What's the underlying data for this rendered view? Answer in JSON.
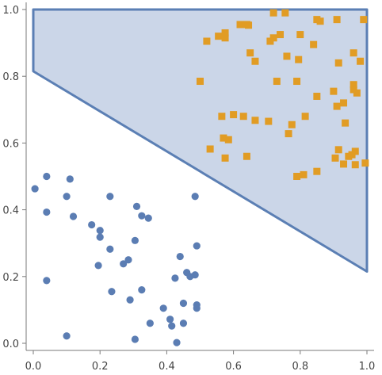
{
  "chart_data": {
    "type": "scatter",
    "title": "",
    "xlabel": "",
    "ylabel": "",
    "xlim": [
      0,
      1
    ],
    "ylim": [
      0,
      1
    ],
    "xticks": [
      "0.0",
      "0.2",
      "0.4",
      "0.6",
      "0.8",
      "1.0"
    ],
    "yticks": [
      "0.0",
      "0.2",
      "0.4",
      "0.6",
      "0.8",
      "1.0"
    ],
    "grid": false,
    "legend": "none",
    "region": {
      "fill": "#cbd6e8",
      "stroke": "#5b7fb4",
      "vertices": [
        [
          0.0,
          1.0
        ],
        [
          1.0,
          1.0
        ],
        [
          1.0,
          0.215
        ],
        [
          0.0,
          0.815
        ]
      ]
    },
    "series": [
      {
        "marker": "circle",
        "color": "#5b7db3",
        "points": [
          [
            0.005,
            0.463
          ],
          [
            0.04,
            0.5
          ],
          [
            0.04,
            0.393
          ],
          [
            0.04,
            0.188
          ],
          [
            0.1,
            0.44
          ],
          [
            0.11,
            0.492
          ],
          [
            0.12,
            0.38
          ],
          [
            0.1,
            0.022
          ],
          [
            0.175,
            0.355
          ],
          [
            0.2,
            0.338
          ],
          [
            0.2,
            0.318
          ],
          [
            0.195,
            0.233
          ],
          [
            0.23,
            0.282
          ],
          [
            0.23,
            0.44
          ],
          [
            0.235,
            0.155
          ],
          [
            0.27,
            0.238
          ],
          [
            0.285,
            0.25
          ],
          [
            0.29,
            0.13
          ],
          [
            0.31,
            0.41
          ],
          [
            0.305,
            0.308
          ],
          [
            0.305,
            0.012
          ],
          [
            0.325,
            0.382
          ],
          [
            0.325,
            0.16
          ],
          [
            0.345,
            0.375
          ],
          [
            0.35,
            0.06
          ],
          [
            0.39,
            0.105
          ],
          [
            0.41,
            0.072
          ],
          [
            0.415,
            0.052
          ],
          [
            0.425,
            0.195
          ],
          [
            0.43,
            0.002
          ],
          [
            0.44,
            0.26
          ],
          [
            0.45,
            0.06
          ],
          [
            0.45,
            0.12
          ],
          [
            0.46,
            0.212
          ],
          [
            0.47,
            0.2
          ],
          [
            0.485,
            0.44
          ],
          [
            0.485,
            0.205
          ],
          [
            0.49,
            0.292
          ],
          [
            0.49,
            0.115
          ],
          [
            0.49,
            0.105
          ]
        ]
      },
      {
        "marker": "square",
        "color": "#e19c24",
        "points": [
          [
            0.5,
            0.785
          ],
          [
            0.52,
            0.905
          ],
          [
            0.53,
            0.582
          ],
          [
            0.555,
            0.92
          ],
          [
            0.565,
            0.68
          ],
          [
            0.57,
            0.615
          ],
          [
            0.575,
            0.555
          ],
          [
            0.575,
            0.915
          ],
          [
            0.575,
            0.93
          ],
          [
            0.585,
            0.61
          ],
          [
            0.6,
            0.685
          ],
          [
            0.62,
            0.955
          ],
          [
            0.63,
            0.68
          ],
          [
            0.64,
            0.56
          ],
          [
            0.64,
            0.955
          ],
          [
            0.645,
            0.953
          ],
          [
            0.65,
            0.87
          ],
          [
            0.665,
            0.668
          ],
          [
            0.665,
            0.845
          ],
          [
            0.705,
            0.665
          ],
          [
            0.71,
            0.905
          ],
          [
            0.72,
            0.99
          ],
          [
            0.72,
            0.915
          ],
          [
            0.73,
            0.785
          ],
          [
            0.74,
            0.925
          ],
          [
            0.755,
            0.99
          ],
          [
            0.76,
            0.86
          ],
          [
            0.765,
            0.628
          ],
          [
            0.775,
            0.655
          ],
          [
            0.79,
            0.785
          ],
          [
            0.79,
            0.5
          ],
          [
            0.795,
            0.85
          ],
          [
            0.8,
            0.925
          ],
          [
            0.81,
            0.505
          ],
          [
            0.815,
            0.68
          ],
          [
            0.84,
            0.895
          ],
          [
            0.85,
            0.515
          ],
          [
            0.85,
            0.74
          ],
          [
            0.85,
            0.97
          ],
          [
            0.86,
            0.965
          ],
          [
            0.9,
            0.755
          ],
          [
            0.905,
            0.555
          ],
          [
            0.91,
            0.71
          ],
          [
            0.91,
            0.97
          ],
          [
            0.915,
            0.84
          ],
          [
            0.915,
            0.58
          ],
          [
            0.93,
            0.537
          ],
          [
            0.93,
            0.72
          ],
          [
            0.935,
            0.66
          ],
          [
            0.945,
            0.56
          ],
          [
            0.955,
            0.565
          ],
          [
            0.96,
            0.87
          ],
          [
            0.96,
            0.775
          ],
          [
            0.96,
            0.76
          ],
          [
            0.965,
            0.575
          ],
          [
            0.965,
            0.535
          ],
          [
            0.97,
            0.75
          ],
          [
            0.98,
            0.845
          ],
          [
            0.99,
            0.97
          ],
          [
            0.995,
            0.54
          ]
        ]
      }
    ]
  }
}
